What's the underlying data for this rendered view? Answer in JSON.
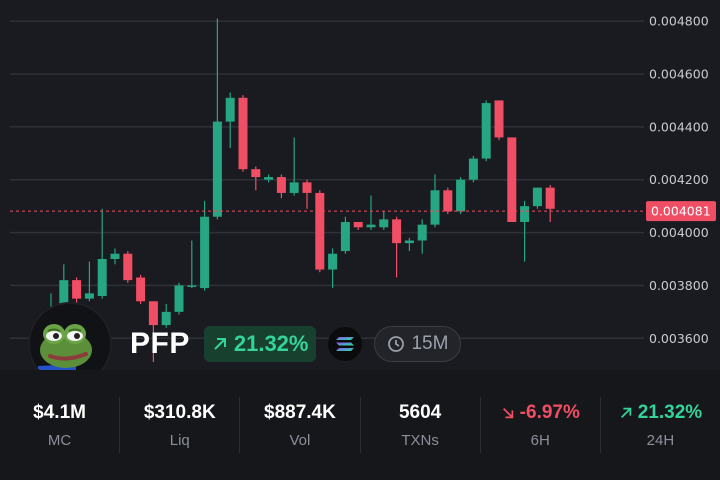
{
  "chart_data": {
    "type": "candlestick",
    "y_ticks": [
      "0.004800",
      "0.004600",
      "0.004400",
      "0.004200",
      "0.004000",
      "0.003800",
      "0.003600"
    ],
    "ylim": [
      0.00348,
      0.00488
    ],
    "current_price": 0.004081,
    "current_price_label": "0.004081",
    "colors": {
      "up": "#26a682",
      "down": "#f04e64",
      "grid": "#2f3138",
      "label": "#c8cbd2"
    },
    "candles": [
      {
        "o": 0.0036,
        "h": 0.00377,
        "l": 0.00358,
        "c": 0.00368
      },
      {
        "o": 0.00368,
        "h": 0.00388,
        "l": 0.00367,
        "c": 0.00382
      },
      {
        "o": 0.00382,
        "h": 0.00383,
        "l": 0.00368,
        "c": 0.00375
      },
      {
        "o": 0.00375,
        "h": 0.00389,
        "l": 0.00374,
        "c": 0.00377
      },
      {
        "o": 0.00376,
        "h": 0.00409,
        "l": 0.00375,
        "c": 0.0039
      },
      {
        "o": 0.0039,
        "h": 0.00394,
        "l": 0.00388,
        "c": 0.00392
      },
      {
        "o": 0.00392,
        "h": 0.00393,
        "l": 0.00381,
        "c": 0.00382
      },
      {
        "o": 0.00383,
        "h": 0.00384,
        "l": 0.00373,
        "c": 0.00374
      },
      {
        "o": 0.00374,
        "h": 0.00374,
        "l": 0.00351,
        "c": 0.00365
      },
      {
        "o": 0.00365,
        "h": 0.00373,
        "l": 0.00364,
        "c": 0.0037
      },
      {
        "o": 0.0037,
        "h": 0.00381,
        "l": 0.00369,
        "c": 0.0038
      },
      {
        "o": 0.0038,
        "h": 0.00397,
        "l": 0.00379,
        "c": 0.0038
      },
      {
        "o": 0.00379,
        "h": 0.00412,
        "l": 0.00378,
        "c": 0.00406
      },
      {
        "o": 0.00406,
        "h": 0.00481,
        "l": 0.00405,
        "c": 0.00442
      },
      {
        "o": 0.00442,
        "h": 0.00453,
        "l": 0.00432,
        "c": 0.00451
      },
      {
        "o": 0.00451,
        "h": 0.00452,
        "l": 0.00423,
        "c": 0.00424
      },
      {
        "o": 0.00424,
        "h": 0.00425,
        "l": 0.00416,
        "c": 0.00421
      },
      {
        "o": 0.0042,
        "h": 0.00422,
        "l": 0.00419,
        "c": 0.00421
      },
      {
        "o": 0.00421,
        "h": 0.00422,
        "l": 0.00413,
        "c": 0.00415
      },
      {
        "o": 0.00415,
        "h": 0.00436,
        "l": 0.00414,
        "c": 0.00419
      },
      {
        "o": 0.00419,
        "h": 0.0042,
        "l": 0.00409,
        "c": 0.00415
      },
      {
        "o": 0.00415,
        "h": 0.00416,
        "l": 0.00385,
        "c": 0.00386
      },
      {
        "o": 0.00386,
        "h": 0.00394,
        "l": 0.00379,
        "c": 0.00392
      },
      {
        "o": 0.00393,
        "h": 0.00406,
        "l": 0.00392,
        "c": 0.00404
      },
      {
        "o": 0.00404,
        "h": 0.00404,
        "l": 0.00401,
        "c": 0.00402
      },
      {
        "o": 0.00402,
        "h": 0.00414,
        "l": 0.00401,
        "c": 0.00403
      },
      {
        "o": 0.00402,
        "h": 0.00408,
        "l": 0.00401,
        "c": 0.00405
      },
      {
        "o": 0.00405,
        "h": 0.00406,
        "l": 0.00383,
        "c": 0.00396
      },
      {
        "o": 0.00396,
        "h": 0.00398,
        "l": 0.00393,
        "c": 0.00397
      },
      {
        "o": 0.00397,
        "h": 0.00405,
        "l": 0.00392,
        "c": 0.00403
      },
      {
        "o": 0.00403,
        "h": 0.00422,
        "l": 0.00402,
        "c": 0.00416
      },
      {
        "o": 0.00416,
        "h": 0.00417,
        "l": 0.00407,
        "c": 0.00408
      },
      {
        "o": 0.00408,
        "h": 0.00421,
        "l": 0.00407,
        "c": 0.0042
      },
      {
        "o": 0.0042,
        "h": 0.00429,
        "l": 0.00419,
        "c": 0.00428
      },
      {
        "o": 0.00428,
        "h": 0.0045,
        "l": 0.00427,
        "c": 0.00449
      },
      {
        "o": 0.0045,
        "h": 0.0045,
        "l": 0.00435,
        "c": 0.00436
      },
      {
        "o": 0.00436,
        "h": 0.00436,
        "l": 0.00404,
        "c": 0.00404
      },
      {
        "o": 0.00404,
        "h": 0.00412,
        "l": 0.00389,
        "c": 0.0041
      },
      {
        "o": 0.0041,
        "h": 0.00417,
        "l": 0.00409,
        "c": 0.00417
      },
      {
        "o": 0.00417,
        "h": 0.00418,
        "l": 0.00404,
        "c": 0.00409
      }
    ]
  },
  "token": {
    "symbol": "PFP",
    "change_pct": "21.32%",
    "chain_icon": "solana-icon",
    "interval": "15M"
  },
  "stats": [
    {
      "value": "$4.1M",
      "label": "MC",
      "trend": "none"
    },
    {
      "value": "$310.8K",
      "label": "Liq",
      "trend": "none"
    },
    {
      "value": "$887.4K",
      "label": "Vol",
      "trend": "none"
    },
    {
      "value": "5604",
      "label": "TXNs",
      "trend": "none"
    },
    {
      "value": "-6.97%",
      "label": "6H",
      "trend": "down"
    },
    {
      "value": "21.32%",
      "label": "24H",
      "trend": "up"
    }
  ]
}
